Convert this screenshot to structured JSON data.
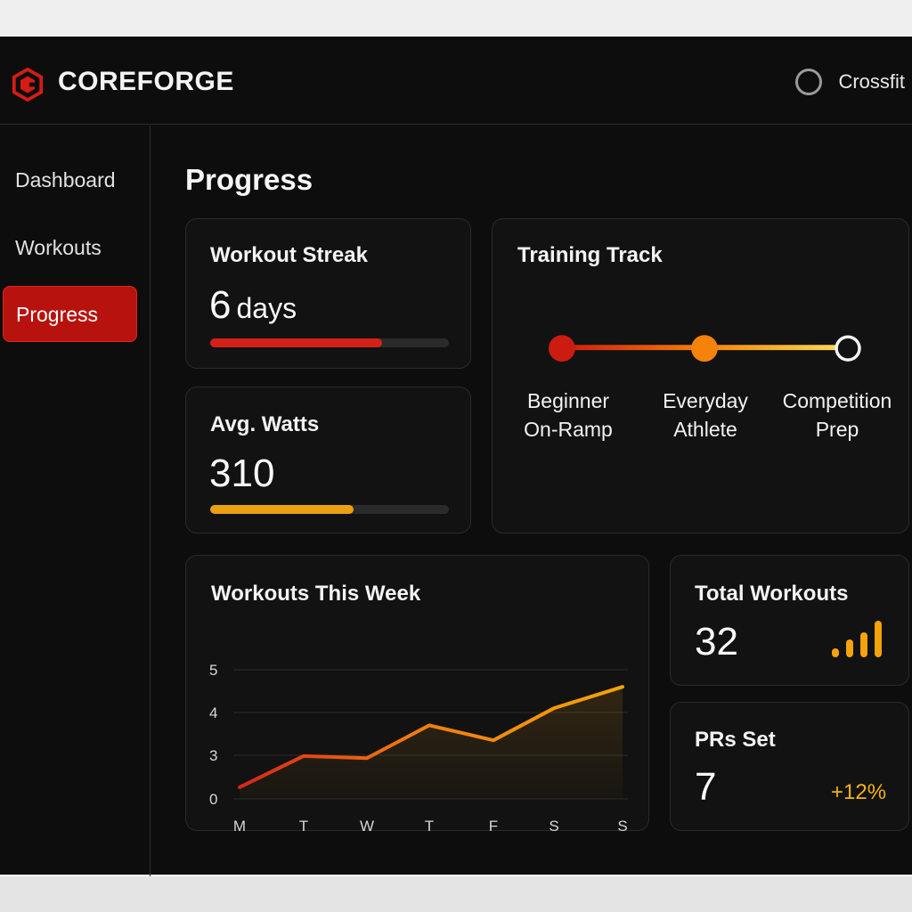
{
  "header": {
    "brand": "COREFORGE",
    "logo_icon": "hexagon-c-logo-icon",
    "user_label": "Crossfit",
    "user_icon": "avatar-ring-icon"
  },
  "sidebar": {
    "items": [
      {
        "label": "Dashboard",
        "active": false
      },
      {
        "label": "Workouts",
        "active": false
      },
      {
        "label": "Progress",
        "active": true
      }
    ]
  },
  "page": {
    "title": "Progress"
  },
  "streak": {
    "title": "Workout Streak",
    "value": "6",
    "unit": "days",
    "progress_pct": 72,
    "bar_color": "#d3211a"
  },
  "watts": {
    "title": "Avg. Watts",
    "value": "310",
    "progress_pct": 60,
    "bar_color": "#eaa010"
  },
  "training_track": {
    "title": "Training Track",
    "steps": [
      {
        "line1": "Beginner",
        "line2": "On-Ramp",
        "state": "done",
        "color": "#cc1b10"
      },
      {
        "line1": "Everyday",
        "line2": "Athlete",
        "state": "current",
        "color": "#f5820a"
      },
      {
        "line1": "Competition",
        "line2": "Prep",
        "state": "upcoming",
        "color": "#ffffff"
      }
    ]
  },
  "weekly_chart": {
    "title": "Workouts This Week",
    "y_ticks": [
      "5",
      "4",
      "3",
      "0"
    ],
    "x_labels": [
      "M",
      "T",
      "W",
      "T",
      "F",
      "S",
      "S"
    ]
  },
  "total_workouts": {
    "title": "Total Workouts",
    "value": "32",
    "icon": "signal-bars-icon"
  },
  "prs": {
    "title": "PRs Set",
    "value": "7",
    "delta": "+12%"
  },
  "colors": {
    "accent_red": "#b8120e",
    "accent_orange": "#f5820a",
    "accent_yellow": "#f4b316",
    "background": "#0d0d0d",
    "card": "#121212"
  },
  "chart_data": {
    "type": "line",
    "title": "Workouts This Week",
    "categories": [
      "M",
      "T",
      "W",
      "T",
      "F",
      "S",
      "S"
    ],
    "values": [
      0.8,
      2.95,
      2.8,
      3.7,
      3.35,
      4.1,
      4.6
    ],
    "xlabel": "",
    "ylabel": "",
    "y_ticks": [
      0,
      3,
      4,
      5
    ],
    "ylim": [
      0,
      5
    ],
    "grid": true,
    "legend": "none",
    "fill_under_line": true,
    "line_gradient": [
      "#d8261a",
      "#f5a20c"
    ]
  }
}
